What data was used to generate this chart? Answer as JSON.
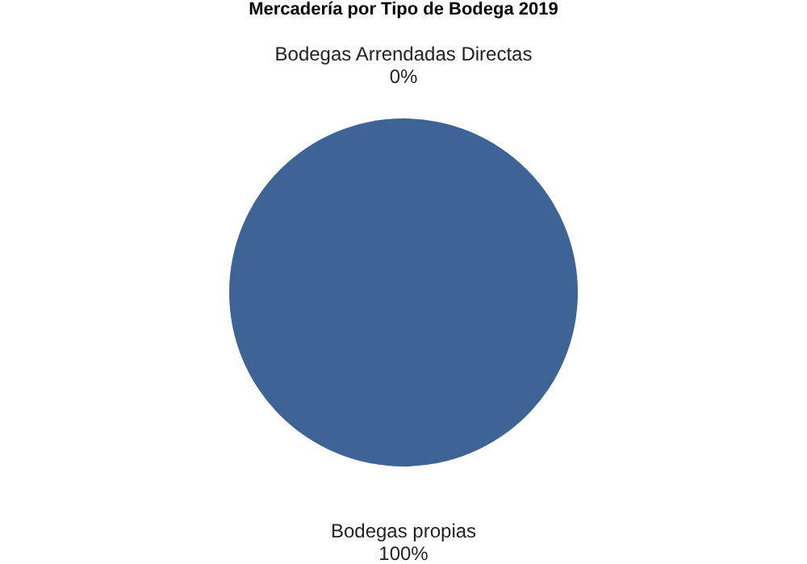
{
  "chart_data": {
    "type": "pie",
    "title": "Mercadería por Tipo de Bodega 2019",
    "categories": [
      "Bodegas Arrendadas Directas",
      "Bodegas propias"
    ],
    "values": [
      0,
      100
    ],
    "colors": [
      "#24415f",
      "#3d6494"
    ],
    "value_labels": [
      "0%",
      "100%"
    ]
  }
}
